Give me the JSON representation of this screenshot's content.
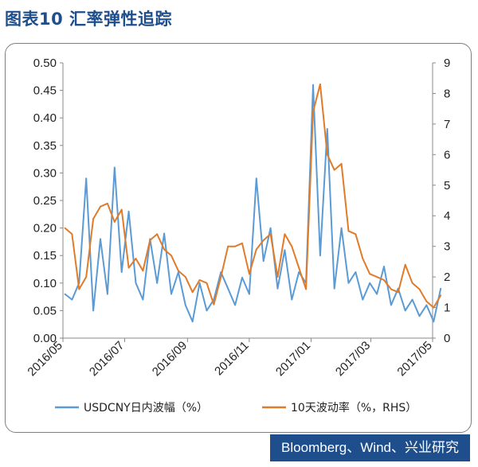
{
  "title": "图表10 汇率弹性追踪",
  "source": "Bloomberg、Wind、兴业研究",
  "chart_data": {
    "type": "line",
    "title": "",
    "xlabel": "",
    "ylabel": "",
    "x_ticks": [
      "2016/05",
      "2016/07",
      "2016/09",
      "2016/11",
      "2017/01",
      "2017/03",
      "2017/05"
    ],
    "y_left_ticks": [
      "0.00",
      "0.05",
      "0.10",
      "0.15",
      "0.20",
      "0.25",
      "0.30",
      "0.35",
      "0.40",
      "0.45",
      "0.50"
    ],
    "y_right_ticks": [
      "0",
      "1",
      "2",
      "3",
      "4",
      "5",
      "6",
      "7",
      "8",
      "9"
    ],
    "ylim": [
      0,
      0.5
    ],
    "ylim_right": [
      0,
      9
    ],
    "grid": false,
    "legend_position": "bottom",
    "series": [
      {
        "name": "USDCNY日内波幅（%）",
        "axis": "left",
        "color": "#5b9bd5",
        "x": [
          "2016/05/03",
          "2016/05/10",
          "2016/05/17",
          "2016/05/24",
          "2016/05/31",
          "2016/06/07",
          "2016/06/14",
          "2016/06/21",
          "2016/06/28",
          "2016/07/05",
          "2016/07/12",
          "2016/07/19",
          "2016/07/26",
          "2016/08/02",
          "2016/08/09",
          "2016/08/16",
          "2016/08/23",
          "2016/08/30",
          "2016/09/06",
          "2016/09/13",
          "2016/09/20",
          "2016/09/27",
          "2016/10/04",
          "2016/10/11",
          "2016/10/18",
          "2016/10/25",
          "2016/11/01",
          "2016/11/08",
          "2016/11/15",
          "2016/11/22",
          "2016/11/29",
          "2016/12/06",
          "2016/12/13",
          "2016/12/20",
          "2016/12/27",
          "2017/01/03",
          "2017/01/10",
          "2017/01/17",
          "2017/01/24",
          "2017/01/31",
          "2017/02/07",
          "2017/02/14",
          "2017/02/21",
          "2017/02/28",
          "2017/03/07",
          "2017/03/14",
          "2017/03/21",
          "2017/03/28",
          "2017/04/04",
          "2017/04/11",
          "2017/04/18",
          "2017/04/25",
          "2017/05/02",
          "2017/05/09"
        ],
        "values": [
          0.08,
          0.07,
          0.1,
          0.29,
          0.05,
          0.18,
          0.08,
          0.31,
          0.12,
          0.23,
          0.1,
          0.07,
          0.18,
          0.1,
          0.19,
          0.08,
          0.12,
          0.06,
          0.03,
          0.1,
          0.05,
          0.07,
          0.12,
          0.09,
          0.06,
          0.11,
          0.08,
          0.29,
          0.14,
          0.2,
          0.09,
          0.16,
          0.07,
          0.12,
          0.1,
          0.46,
          0.15,
          0.38,
          0.09,
          0.2,
          0.1,
          0.12,
          0.07,
          0.1,
          0.08,
          0.13,
          0.06,
          0.09,
          0.05,
          0.07,
          0.04,
          0.06,
          0.03,
          0.09
        ]
      },
      {
        "name": "10天波动率（%，RHS）",
        "axis": "right",
        "color": "#e07b2a",
        "x": [
          "2016/05/03",
          "2016/05/10",
          "2016/05/17",
          "2016/05/24",
          "2016/05/31",
          "2016/06/07",
          "2016/06/14",
          "2016/06/21",
          "2016/06/28",
          "2016/07/05",
          "2016/07/12",
          "2016/07/19",
          "2016/07/26",
          "2016/08/02",
          "2016/08/09",
          "2016/08/16",
          "2016/08/23",
          "2016/08/30",
          "2016/09/06",
          "2016/09/13",
          "2016/09/20",
          "2016/09/27",
          "2016/10/04",
          "2016/10/11",
          "2016/10/18",
          "2016/10/25",
          "2016/11/01",
          "2016/11/08",
          "2016/11/15",
          "2016/11/22",
          "2016/11/29",
          "2016/12/06",
          "2016/12/13",
          "2016/12/20",
          "2016/12/27",
          "2017/01/03",
          "2017/01/10",
          "2017/01/17",
          "2017/01/24",
          "2017/01/31",
          "2017/02/07",
          "2017/02/14",
          "2017/02/21",
          "2017/02/28",
          "2017/03/07",
          "2017/03/14",
          "2017/03/21",
          "2017/03/28",
          "2017/04/04",
          "2017/04/11",
          "2017/04/18",
          "2017/04/25",
          "2017/05/02",
          "2017/05/09"
        ],
        "values": [
          3.6,
          3.4,
          1.6,
          2.0,
          3.9,
          4.3,
          4.4,
          3.8,
          4.2,
          2.3,
          2.6,
          2.2,
          3.2,
          3.4,
          2.9,
          2.7,
          2.2,
          2.0,
          1.5,
          1.9,
          1.8,
          1.1,
          2.0,
          3.0,
          3.0,
          3.1,
          2.1,
          2.9,
          3.2,
          3.4,
          2.0,
          3.4,
          3.0,
          2.3,
          1.6,
          7.4,
          8.3,
          6.0,
          5.5,
          5.7,
          3.5,
          3.4,
          2.6,
          2.1,
          2.0,
          1.9,
          1.6,
          1.5,
          2.4,
          1.8,
          1.6,
          1.2,
          1.0,
          1.4
        ]
      }
    ]
  }
}
